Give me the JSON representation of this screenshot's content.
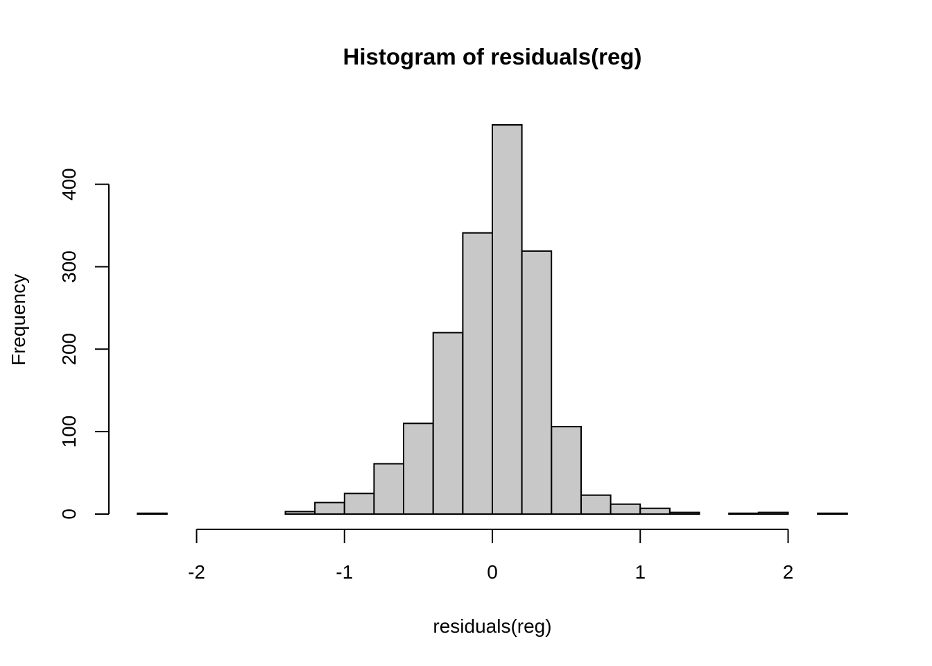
{
  "chart_data": {
    "type": "bar",
    "title": "Histogram of residuals(reg)",
    "xlabel": "residuals(reg)",
    "ylabel": "Frequency",
    "bin_edges": [
      -2.4,
      -2.2,
      -2.0,
      -1.8,
      -1.6,
      -1.4,
      -1.2,
      -1.0,
      -0.8,
      -0.6,
      -0.4,
      -0.2,
      0.0,
      0.2,
      0.4,
      0.6,
      0.8,
      1.0,
      1.2,
      1.4,
      1.6,
      1.8,
      2.0,
      2.2,
      2.4
    ],
    "values": [
      1,
      0,
      0,
      0,
      0,
      3,
      14,
      25,
      61,
      110,
      220,
      341,
      472,
      319,
      106,
      23,
      12,
      7,
      2,
      0,
      1,
      2,
      0,
      1
    ],
    "x_ticks": [
      -2,
      -1,
      0,
      1,
      2
    ],
    "x_tick_labels": [
      "-2",
      "-1",
      "0",
      "1",
      "2"
    ],
    "y_ticks": [
      0,
      100,
      200,
      300,
      400
    ],
    "y_tick_labels": [
      "0",
      "100",
      "200",
      "300",
      "400"
    ],
    "xlim": [
      -2.4,
      2.4
    ],
    "ylim": [
      0,
      472
    ],
    "grid": false,
    "legend": "none",
    "colors": {
      "bar_fill": "#c8c8c8",
      "bar_stroke": "#000000"
    }
  }
}
